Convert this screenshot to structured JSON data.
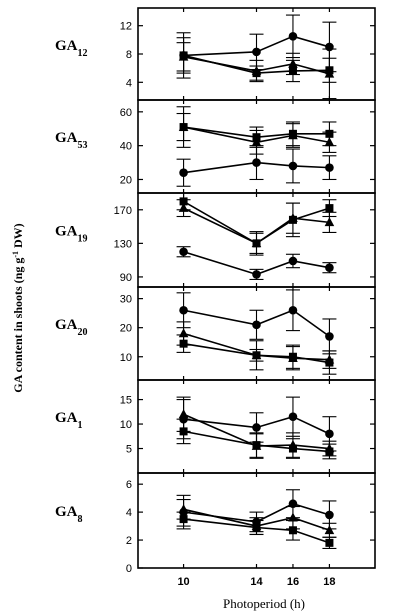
{
  "chart_data": {
    "type": "line",
    "xlabel": "Photoperiod (h)",
    "ylabel": "GA content in shoots (ng g-1 DW)",
    "x": [
      10,
      14,
      16,
      18
    ],
    "xticks": [
      "10",
      "14",
      "16",
      "18"
    ],
    "xlim": [
      7.5,
      20.5
    ],
    "marker_legend": [
      "circle",
      "square",
      "triangle"
    ],
    "panels": [
      {
        "name": "GA12",
        "ylim": [
          1.5,
          14.5
        ],
        "yticks": [
          4,
          8,
          12
        ],
        "series": [
          {
            "marker": "circle",
            "values": [
              7.8,
              8.3,
              10.5,
              9.0
            ],
            "err": [
              3.2,
              2.5,
              3.0,
              3.5
            ]
          },
          {
            "marker": "square",
            "values": [
              7.8,
              5.3,
              5.6,
              5.7
            ],
            "err": [
              2.5,
              1.0,
              1.5,
              1.7
            ]
          },
          {
            "marker": "triangle",
            "values": [
              7.6,
              5.6,
              6.6,
              5.2
            ],
            "err": [
              2.0,
              1.5,
              1.5,
              3.5
            ]
          }
        ]
      },
      {
        "name": "GA53",
        "ylim": [
          12,
          67
        ],
        "yticks": [
          20,
          40,
          60
        ],
        "series": [
          {
            "marker": "circle",
            "values": [
              24,
              30,
              28,
              27
            ],
            "err": [
              8,
              10,
              10,
              7
            ]
          },
          {
            "marker": "square",
            "values": [
              51,
              45,
              47,
              47
            ],
            "err": [
              12,
              6,
              7,
              7
            ]
          },
          {
            "marker": "triangle",
            "values": [
              51,
              42,
              46,
              42
            ],
            "err": [
              8,
              7,
              7,
              6
            ]
          }
        ]
      },
      {
        "name": "GA19",
        "ylim": [
          78,
          190
        ],
        "yticks": [
          90,
          130,
          170
        ],
        "series": [
          {
            "marker": "circle",
            "values": [
              120,
              93,
              109,
              101
            ],
            "err": [
              6,
              6,
              8,
              6
            ]
          },
          {
            "marker": "square",
            "values": [
              180,
              130,
              158,
              172
            ],
            "err": [
              10,
              12,
              20,
              10
            ]
          },
          {
            "marker": "triangle",
            "values": [
              172,
              130,
              160,
              155
            ],
            "err": [
              10,
              14,
              18,
              12
            ]
          }
        ]
      },
      {
        "name": "GA20",
        "ylim": [
          2,
          34
        ],
        "yticks": [
          10,
          20,
          30
        ],
        "series": [
          {
            "marker": "circle",
            "values": [
              26,
              21,
              26,
              17
            ],
            "err": [
              6,
              5,
              7,
              6
            ]
          },
          {
            "marker": "square",
            "values": [
              14.5,
              10.5,
              10,
              8
            ],
            "err": [
              3,
              2,
              4,
              4
            ]
          },
          {
            "marker": "triangle",
            "values": [
              18,
              10.5,
              9.5,
              9
            ],
            "err": [
              4,
              5,
              4,
              3
            ]
          }
        ]
      },
      {
        "name": "GA1",
        "ylim": [
          0,
          19
        ],
        "yticks": [
          5,
          10,
          15
        ],
        "series": [
          {
            "marker": "circle",
            "values": [
              11,
              9.3,
              11.5,
              8
            ],
            "err": [
              4,
              3,
              4,
              3.5
            ]
          },
          {
            "marker": "square",
            "values": [
              8.5,
              5.7,
              5,
              4.4
            ],
            "err": [
              2.5,
              2.5,
              2,
              1.5
            ]
          },
          {
            "marker": "triangle",
            "values": [
              12,
              5.5,
              5.7,
              5
            ],
            "err": [
              3.5,
              2.5,
              2.5,
              1.5
            ]
          }
        ]
      },
      {
        "name": "GA8",
        "ylim": [
          0,
          6.8
        ],
        "yticks": [
          0,
          2,
          4,
          6
        ],
        "series": [
          {
            "marker": "circle",
            "values": [
              4,
              3.3,
              4.6,
              3.8
            ],
            "err": [
              1.2,
              0.7,
              1.0,
              1.0
            ]
          },
          {
            "marker": "square",
            "values": [
              3.5,
              2.9,
              2.7,
              1.8
            ],
            "err": [
              0.5,
              0.5,
              0.7,
              0.4
            ]
          },
          {
            "marker": "triangle",
            "values": [
              4.2,
              3.0,
              3.6,
              2.7
            ],
            "err": [
              0.7,
              0.6,
              0.8,
              0.5
            ]
          }
        ]
      }
    ]
  }
}
